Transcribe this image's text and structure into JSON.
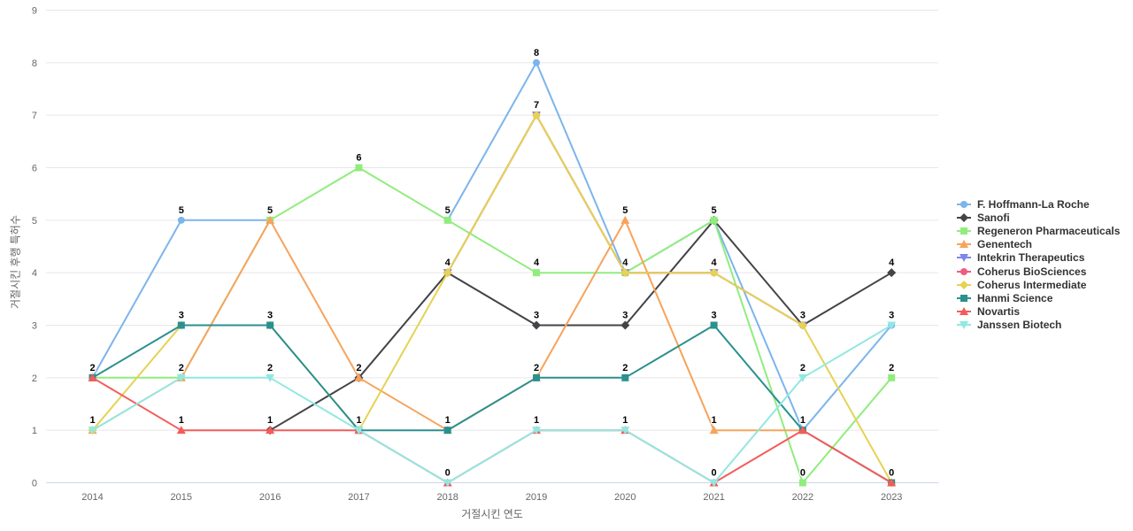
{
  "chart_data": {
    "type": "line",
    "title": "",
    "xlabel": "거절시킨 연도",
    "ylabel": "거절시킨 후행 특허수",
    "x": [
      2014,
      2015,
      2016,
      2017,
      2018,
      2019,
      2020,
      2021,
      2022,
      2023
    ],
    "ylim": [
      0,
      9
    ],
    "yticks": [
      0,
      1,
      2,
      3,
      4,
      5,
      6,
      7,
      8,
      9
    ],
    "grid": true,
    "legend_position": "right",
    "data_labels": true,
    "series": [
      {
        "name": "F. Hoffmann-La Roche",
        "color": "#7cb5ec",
        "marker": "circle",
        "values": [
          2,
          5,
          5,
          null,
          5,
          8,
          4,
          5,
          1,
          3
        ]
      },
      {
        "name": "Sanofi",
        "color": "#434348",
        "marker": "diamond",
        "values": [
          null,
          null,
          1,
          2,
          4,
          3,
          3,
          5,
          3,
          4
        ]
      },
      {
        "name": "Regeneron Pharmaceuticals",
        "color": "#90ed7d",
        "marker": "square",
        "values": [
          2,
          2,
          5,
          6,
          5,
          4,
          4,
          5,
          0,
          2
        ]
      },
      {
        "name": "Genentech",
        "color": "#f7a35c",
        "marker": "triangle",
        "values": [
          1,
          2,
          5,
          2,
          1,
          2,
          5,
          1,
          1,
          null
        ]
      },
      {
        "name": "Intekrin Therapeutics",
        "color": "#8085e9",
        "marker": "triangle-down",
        "values": [
          null,
          null,
          null,
          null,
          4,
          7,
          4,
          4,
          3,
          null
        ]
      },
      {
        "name": "Coherus BioSciences",
        "color": "#f15c80",
        "marker": "circle",
        "values": [
          null,
          null,
          null,
          null,
          4,
          7,
          4,
          4,
          3,
          null
        ]
      },
      {
        "name": "Coherus Intermediate",
        "color": "#e4d354",
        "marker": "diamond",
        "values": [
          1,
          3,
          3,
          1,
          4,
          7,
          4,
          4,
          3,
          0
        ]
      },
      {
        "name": "Hanmi Science",
        "color": "#2b908f",
        "marker": "square",
        "values": [
          2,
          3,
          3,
          1,
          1,
          2,
          2,
          3,
          1,
          0
        ]
      },
      {
        "name": "Novartis",
        "color": "#f45b5b",
        "marker": "triangle",
        "values": [
          2,
          1,
          1,
          1,
          0,
          1,
          1,
          0,
          1,
          0
        ]
      },
      {
        "name": "Janssen Biotech",
        "color": "#91e8e1",
        "marker": "triangle-down",
        "values": [
          1,
          2,
          2,
          1,
          0,
          1,
          1,
          0,
          2,
          3
        ]
      }
    ],
    "colors": {
      "gridline": "#e6e6e6",
      "axis_line": "#ccd6eb",
      "tick_label": "#666666",
      "axis_title": "#666666",
      "legend_text": "#333333",
      "data_label": "#000000"
    }
  }
}
